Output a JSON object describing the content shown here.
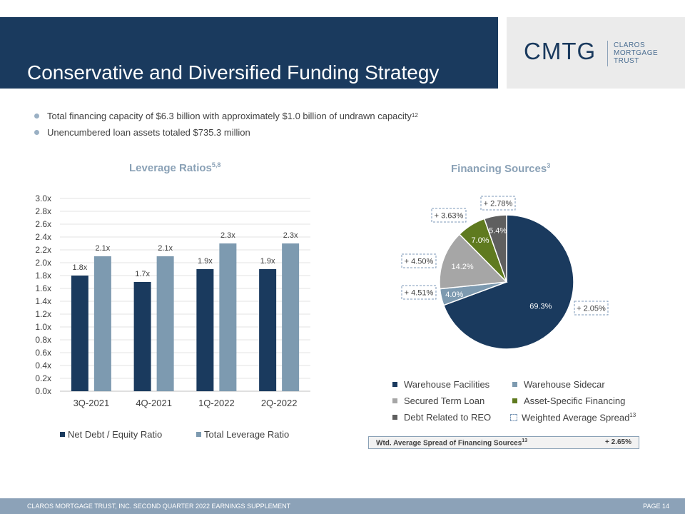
{
  "slide": {
    "title": "Conservative and Diversified Funding Strategy",
    "logo": {
      "main": "CMTG",
      "sub": [
        "CLAROS",
        "MORTGAGE",
        "TRUST"
      ]
    },
    "bullets": [
      {
        "text": "Total financing capacity of $6.3 billion with approximately $1.0 billion of undrawn capacity",
        "sup": "12"
      },
      {
        "text": "Unencumbered loan assets totaled $735.3 million",
        "sup": ""
      }
    ],
    "footer": {
      "text": "CLAROS MORTGAGE TRUST, INC. SECOND QUARTER 2022 EARNINGS SUPPLEMENT",
      "page": "PAGE 14"
    },
    "colors": {
      "navy": "#1a3a5e",
      "steel": "#7d9ab0",
      "gray": "#a6a6a6",
      "olive": "#5f7a1f",
      "dark_gray": "#5f5f5f",
      "footer": "#8ca2b8"
    }
  },
  "bar_chart": {
    "title": "Leverage Ratios",
    "title_sup": "5,8",
    "legend": [
      {
        "label": "Net Debt / Equity Ratio",
        "color": "#1a3a5e"
      },
      {
        "label": "Total Leverage Ratio",
        "color": "#7d9ab0"
      }
    ]
  },
  "pie_chart": {
    "title": "Financing Sources",
    "title_sup": "3",
    "legend": [
      {
        "label": "Warehouse Facilities",
        "color": "#1a3a5e"
      },
      {
        "label": "Warehouse Sidecar",
        "color": "#7d9ab0"
      },
      {
        "label": "Secured Term Loan",
        "color": "#a6a6a6"
      },
      {
        "label": "Asset-Specific Financing",
        "color": "#5f7a1f"
      },
      {
        "label": "Debt Related to REO",
        "color": "#5f5f5f"
      }
    ],
    "legend_spread_label": "Weighted Average Spread",
    "legend_spread_sup": "13",
    "wtd_box": {
      "label": "Wtd. Average Spread of Financing Sources",
      "sup": "13",
      "value": "+ 2.65%"
    }
  },
  "chart_data": [
    {
      "type": "bar",
      "title": "Leverage Ratios",
      "categories": [
        "3Q-2021",
        "4Q-2021",
        "1Q-2022",
        "2Q-2022"
      ],
      "series": [
        {
          "name": "Net Debt / Equity Ratio",
          "values": [
            1.8,
            1.7,
            1.9,
            1.9
          ],
          "labels": [
            "1.8x",
            "1.7x",
            "1.9x",
            "1.9x"
          ],
          "color": "#1a3a5e"
        },
        {
          "name": "Total Leverage Ratio",
          "values": [
            2.1,
            2.1,
            2.3,
            2.3
          ],
          "labels": [
            "2.1x",
            "2.1x",
            "2.3x",
            "2.3x"
          ],
          "color": "#7d9ab0"
        }
      ],
      "ylim": [
        0,
        3.0
      ],
      "yticks": [
        "0.0x",
        "0.2x",
        "0.4x",
        "0.6x",
        "0.8x",
        "1.0x",
        "1.2x",
        "1.4x",
        "1.6x",
        "1.8x",
        "2.0x",
        "2.2x",
        "2.4x",
        "2.6x",
        "2.8x",
        "3.0x"
      ],
      "grid": true,
      "legend_position": "bottom"
    },
    {
      "type": "pie",
      "title": "Financing Sources",
      "slices": [
        {
          "label": "Warehouse Facilities",
          "value": 69.3,
          "text": "69.3%",
          "spread": "+ 2.05%",
          "color": "#1a3a5e"
        },
        {
          "label": "Warehouse Sidecar",
          "value": 4.0,
          "text": "4.0%",
          "spread": "+ 4.51%",
          "color": "#7d9ab0"
        },
        {
          "label": "Secured Term Loan",
          "value": 14.2,
          "text": "14.2%",
          "spread": "+ 4.50%",
          "color": "#a6a6a6"
        },
        {
          "label": "Asset-Specific Financing",
          "value": 7.0,
          "text": "7.0%",
          "spread": "+ 3.63%",
          "color": "#5f7a1f"
        },
        {
          "label": "Debt Related to REO",
          "value": 5.4,
          "text": "5.4%",
          "spread": "+ 2.78%",
          "color": "#5f5f5f"
        }
      ],
      "legend_position": "bottom"
    }
  ]
}
